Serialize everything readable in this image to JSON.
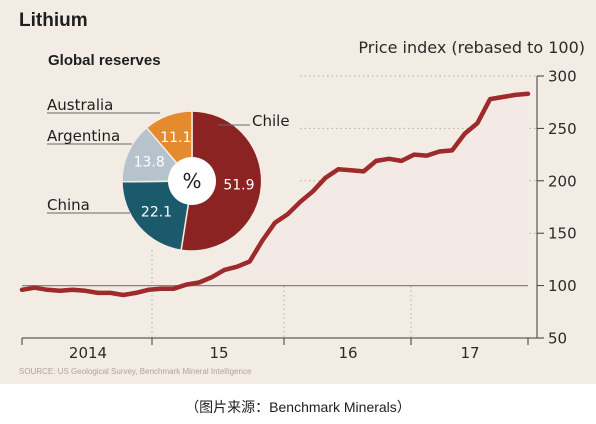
{
  "header": {
    "title": "Lithium"
  },
  "caption": "（图片来源：Benchmark Minerals）",
  "source": "SOURCE: US Geological Survey, Benchmark Mineral Intelligence",
  "colors": {
    "line": "#9e2a2b",
    "fill": "#f3e9e5",
    "chile": "#8c2323",
    "china": "#1b5a6b",
    "argentina": "#b6c3cc",
    "australia": "#e58b2e"
  },
  "chart_data": [
    {
      "type": "line",
      "title": "",
      "ylabel": "Price index (rebased to 100)",
      "xlabel": "",
      "x_tick_labels": [
        "2014",
        "15",
        "16",
        "17"
      ],
      "y_ticks": [
        50,
        100,
        150,
        200,
        250,
        300
      ],
      "ylim": [
        50,
        300
      ],
      "grid": true,
      "series": [
        {
          "values": [
            96,
            98,
            96,
            95,
            96,
            95,
            93,
            93,
            91,
            93,
            96,
            97,
            97,
            101,
            103,
            108,
            115,
            118,
            123,
            143,
            160,
            168,
            180,
            190,
            203,
            211,
            210,
            209,
            219,
            221,
            219,
            225,
            224,
            228,
            229,
            245,
            255,
            278,
            280,
            282,
            283
          ]
        }
      ]
    },
    {
      "type": "pie",
      "title": "Global reserves",
      "center_label": "%",
      "slices": [
        {
          "label": "Chile",
          "value": 51.9,
          "value_label": "51.9",
          "color": "#8c2323"
        },
        {
          "label": "China",
          "value": 22.1,
          "value_label": "22.1",
          "color": "#1b5a6b"
        },
        {
          "label": "Argentina",
          "value": 13.8,
          "value_label": "13.8",
          "color": "#b6c3cc"
        },
        {
          "label": "Australia",
          "value": 11.1,
          "value_label": "11.1",
          "color": "#e58b2e"
        }
      ]
    }
  ]
}
